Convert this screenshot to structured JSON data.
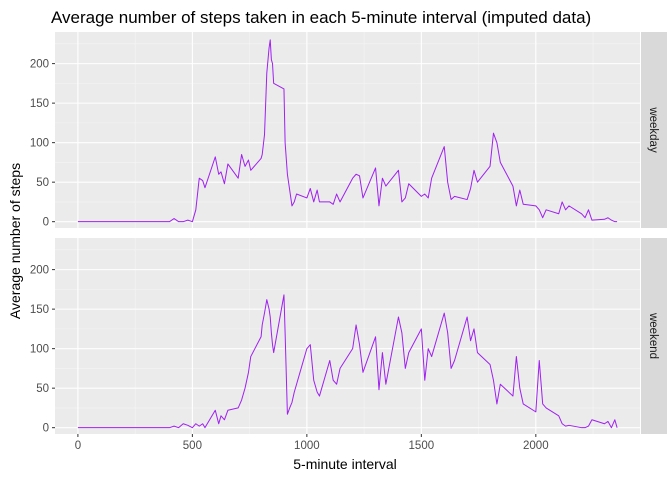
{
  "chart_data": {
    "type": "line",
    "title": "Average number of steps taken in each 5-minute interval (imputed data)",
    "xlabel": "5-minute interval",
    "ylabel": "Average number of steps",
    "xlim": [
      -100,
      2455
    ],
    "ylim": [
      -8,
      240
    ],
    "x_ticks": [
      0,
      500,
      1000,
      1500,
      2000
    ],
    "y_ticks": [
      0,
      50,
      100,
      150,
      200
    ],
    "grid": true,
    "line_color": "#a020f0",
    "panel_background": "#ebebeb",
    "strip_background": "#d9d9d9",
    "panels": [
      {
        "label": "weekday",
        "x": [
          0,
          100,
          200,
          300,
          400,
          420,
          440,
          460,
          480,
          500,
          515,
          530,
          545,
          555,
          600,
          615,
          625,
          640,
          655,
          700,
          715,
          730,
          745,
          755,
          800,
          805,
          815,
          825,
          835,
          840,
          845,
          850,
          855,
          900,
          905,
          915,
          925,
          935,
          945,
          955,
          1000,
          1015,
          1030,
          1045,
          1055,
          1100,
          1115,
          1130,
          1145,
          1200,
          1215,
          1230,
          1245,
          1300,
          1315,
          1330,
          1345,
          1400,
          1415,
          1430,
          1445,
          1500,
          1515,
          1530,
          1545,
          1600,
          1615,
          1630,
          1645,
          1700,
          1715,
          1730,
          1745,
          1800,
          1815,
          1830,
          1845,
          1900,
          1915,
          1930,
          1945,
          2000,
          2015,
          2030,
          2045,
          2100,
          2115,
          2130,
          2145,
          2200,
          2215,
          2230,
          2245,
          2300,
          2315,
          2330,
          2345,
          2355
        ],
        "y": [
          0,
          0,
          0,
          0,
          0,
          4,
          0,
          0,
          2,
          0,
          15,
          55,
          52,
          43,
          82,
          60,
          63,
          48,
          73,
          55,
          85,
          70,
          78,
          65,
          80,
          85,
          110,
          188,
          220,
          230,
          205,
          200,
          175,
          168,
          100,
          60,
          40,
          20,
          25,
          35,
          30,
          42,
          25,
          40,
          25,
          25,
          22,
          35,
          25,
          55,
          60,
          58,
          30,
          68,
          20,
          55,
          45,
          65,
          25,
          30,
          48,
          32,
          35,
          30,
          55,
          95,
          50,
          28,
          32,
          28,
          42,
          65,
          50,
          70,
          112,
          100,
          75,
          45,
          20,
          40,
          22,
          20,
          15,
          5,
          15,
          10,
          25,
          15,
          20,
          10,
          5,
          15,
          2,
          3,
          5,
          2,
          0,
          0
        ],
        "ylim": [
          -8,
          240
        ]
      },
      {
        "label": "weekend",
        "x": [
          0,
          100,
          200,
          300,
          400,
          420,
          440,
          460,
          480,
          500,
          515,
          530,
          545,
          555,
          600,
          615,
          625,
          640,
          655,
          700,
          715,
          730,
          745,
          755,
          800,
          805,
          815,
          825,
          835,
          840,
          845,
          850,
          855,
          900,
          905,
          915,
          925,
          935,
          945,
          955,
          1000,
          1015,
          1030,
          1045,
          1055,
          1100,
          1115,
          1130,
          1145,
          1200,
          1215,
          1230,
          1245,
          1300,
          1315,
          1330,
          1345,
          1400,
          1415,
          1430,
          1445,
          1500,
          1515,
          1530,
          1545,
          1600,
          1615,
          1630,
          1645,
          1700,
          1715,
          1730,
          1745,
          1800,
          1815,
          1830,
          1845,
          1900,
          1915,
          1930,
          1945,
          2000,
          2015,
          2030,
          2045,
          2100,
          2115,
          2130,
          2145,
          2200,
          2215,
          2230,
          2245,
          2300,
          2315,
          2330,
          2345,
          2355
        ],
        "y": [
          0,
          0,
          0,
          0,
          0,
          2,
          0,
          5,
          3,
          0,
          5,
          2,
          5,
          0,
          22,
          5,
          15,
          10,
          22,
          25,
          35,
          50,
          70,
          90,
          115,
          130,
          145,
          162,
          150,
          140,
          120,
          105,
          95,
          168,
          120,
          17,
          25,
          32,
          45,
          55,
          100,
          105,
          60,
          45,
          40,
          85,
          60,
          55,
          75,
          100,
          130,
          105,
          70,
          115,
          48,
          95,
          55,
          140,
          120,
          75,
          95,
          125,
          60,
          100,
          90,
          145,
          120,
          75,
          85,
          140,
          110,
          125,
          95,
          80,
          60,
          30,
          55,
          40,
          90,
          50,
          30,
          20,
          85,
          30,
          25,
          15,
          5,
          2,
          3,
          0,
          0,
          2,
          10,
          5,
          8,
          0,
          10,
          0
        ],
        "ylim": [
          -8,
          240
        ]
      }
    ]
  }
}
